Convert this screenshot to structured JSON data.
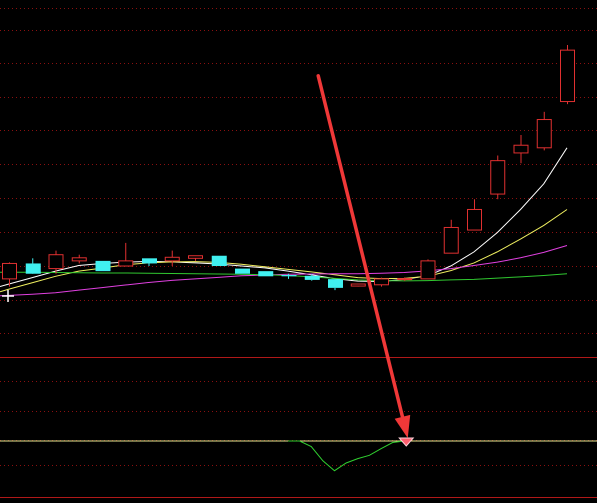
{
  "colors": {
    "background": "#000000",
    "grid": "#8a1010",
    "up_candle": "#e03030",
    "down_candle": "#40f0f0",
    "ma_short": "#ffffff",
    "ma_mid": "#f0f060",
    "ma_long": "#e040e0",
    "ma_longest": "#30c830",
    "indicator_line": "#30d030",
    "zero_line": "#e8e890",
    "arrow": "#f03838",
    "signal_marker": "#ff6070"
  },
  "chart_data": {
    "type": "candlestick",
    "title": "",
    "price_panel": {
      "ylim": [
        0,
        100
      ],
      "grid": true,
      "candles": [
        {
          "o": 9,
          "h": 15.4,
          "l": 6,
          "c": 15
        },
        {
          "o": 15,
          "h": 17,
          "l": 12,
          "c": 11
        },
        {
          "o": 13,
          "h": 20,
          "l": 11,
          "c": 18.4
        },
        {
          "o": 16,
          "h": 18.4,
          "l": 15,
          "c": 17.2
        },
        {
          "o": 16,
          "h": 16,
          "l": 12,
          "c": 12
        },
        {
          "o": 14,
          "h": 23,
          "l": 14,
          "c": 16
        },
        {
          "o": 17,
          "h": 17,
          "l": 14,
          "c": 15
        },
        {
          "o": 16,
          "h": 20,
          "l": 14,
          "c": 17.4
        },
        {
          "o": 17,
          "h": 18,
          "l": 16,
          "c": 18
        },
        {
          "o": 18,
          "h": 18,
          "l": 14,
          "c": 14
        },
        {
          "o": 13,
          "h": 13,
          "l": 11,
          "c": 11
        },
        {
          "o": 12,
          "h": 12,
          "l": 10,
          "c": 10
        },
        {
          "o": 10.5,
          "h": 11,
          "l": 9,
          "c": 10
        },
        {
          "o": 10.2,
          "h": 10.8,
          "l": 8.3,
          "c": 8.6
        },
        {
          "o": 8.9,
          "h": 8.9,
          "l": 4.6,
          "c": 5.5
        },
        {
          "o": 6.2,
          "h": 7.1,
          "l": 6,
          "c": 7
        },
        {
          "o": 6.7,
          "h": 9.5,
          "l": 6,
          "c": 9
        },
        {
          "o": 9,
          "h": 9.6,
          "l": 8.2,
          "c": 9.1
        },
        {
          "o": 9,
          "h": 16.6,
          "l": 9,
          "c": 16
        },
        {
          "o": 19,
          "h": 32,
          "l": 19,
          "c": 29
        },
        {
          "o": 28,
          "h": 40,
          "l": 28,
          "c": 36
        },
        {
          "o": 42,
          "h": 57,
          "l": 40,
          "c": 55
        },
        {
          "o": 58,
          "h": 65,
          "l": 54,
          "c": 61
        },
        {
          "o": 60,
          "h": 74,
          "l": 59,
          "c": 71
        },
        {
          "o": 78,
          "h": 100,
          "l": 77,
          "c": 98
        }
      ],
      "ma": [
        {
          "name": "",
          "values": [
            7,
            9.5,
            12,
            14.2,
            15,
            15.5,
            15.8,
            15.6,
            15.2,
            14.8,
            14,
            13.3,
            12,
            10.6,
            9.1,
            8.1,
            8,
            8.8,
            10.2,
            14,
            19.5,
            27,
            36,
            46,
            60
          ]
        },
        {
          "name": "",
          "values": [
            5,
            7.5,
            10,
            12,
            13.2,
            14.5,
            15.2,
            15.6,
            15.7,
            15.4,
            14.7,
            13.7,
            12.7,
            11.7,
            10.6,
            9.5,
            9.1,
            9.2,
            10,
            12.2,
            15.2,
            19.5,
            24.5,
            29.8,
            36
          ]
        },
        {
          "name": "",
          "values": [
            2.6,
            3,
            3.6,
            4.6,
            5.6,
            6.6,
            7.6,
            8.4,
            9,
            9.6,
            10.2,
            10.5,
            10.8,
            10.9,
            11,
            11,
            11.2,
            11.5,
            12.1,
            13,
            14.2,
            15.5,
            17.2,
            19.3,
            22
          ]
        },
        {
          "name": "",
          "values": [
            11.6,
            11.6,
            11.5,
            11.4,
            11.3,
            11.3,
            11.2,
            11.1,
            11,
            10.9,
            10.8,
            10.6,
            10.3,
            9.8,
            9.2,
            8.6,
            8.3,
            8.2,
            8.3,
            8.6,
            8.8,
            9.3,
            9.8,
            10.3,
            11
          ]
        }
      ]
    },
    "indicator_panel": {
      "ylim": [
        -20,
        5
      ],
      "zero": 0,
      "series": [
        {
          "name": "",
          "values": [
            0,
            0,
            -2.5,
            -9,
            -13.5,
            -10,
            -8,
            -6.5,
            -3.5,
            -0.7,
            0
          ]
        }
      ],
      "start_index": 12,
      "signal_index": 17
    },
    "annotations": [
      {
        "type": "arrow",
        "from_index": 13.3,
        "from_price": 88,
        "to_index": 17.15,
        "to_indicator": 1.3
      }
    ]
  }
}
